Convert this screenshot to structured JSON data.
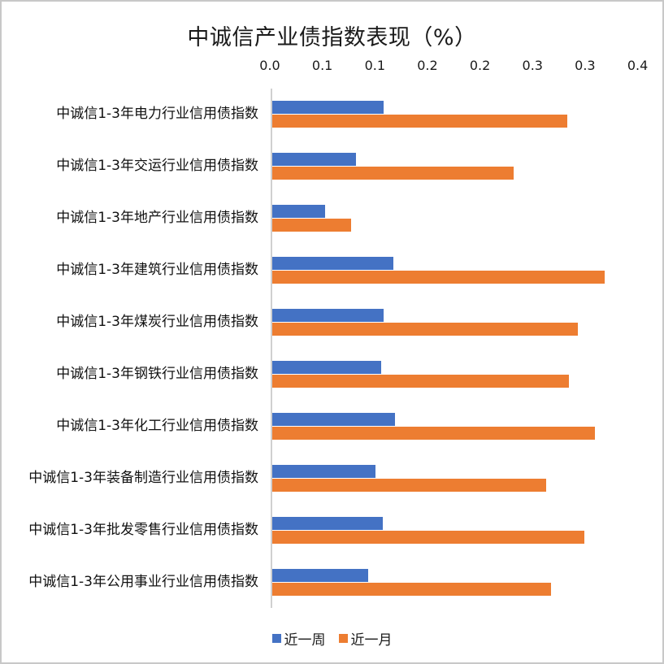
{
  "chart_data": {
    "type": "bar",
    "orientation": "horizontal",
    "title": "中诚信产业债指数表现（%）",
    "xlabel": "",
    "ylabel": "",
    "x_axis_position": "top",
    "xlim": [
      0,
      0.35
    ],
    "x_tick_labels": [
      "0.0",
      "0.1",
      "0.1",
      "0.2",
      "0.2",
      "0.3",
      "0.3",
      "0.4"
    ],
    "x_tick_values": [
      0.0,
      0.05,
      0.1,
      0.15,
      0.2,
      0.25,
      0.3,
      0.35
    ],
    "grid": false,
    "legend_position": "bottom",
    "categories": [
      "中诚信1-3年电力行业信用债指数",
      "中诚信1-3年交运行业信用债指数",
      "中诚信1-3年地产行业信用债指数",
      "中诚信1-3年建筑行业信用债指数",
      "中诚信1-3年煤炭行业信用债指数",
      "中诚信1-3年钢铁行业信用债指数",
      "中诚信1-3年化工行业信用债指数",
      "中诚信1-3年装备制造行业信用债指数",
      "中诚信1-3年批发零售行业信用债指数",
      "中诚信1-3年公用事业行业信用债指数"
    ],
    "series": [
      {
        "name": "近一周",
        "color": "#4472c4",
        "values": [
          0.106,
          0.08,
          0.05,
          0.115,
          0.106,
          0.104,
          0.117,
          0.098,
          0.105,
          0.091
        ]
      },
      {
        "name": "近一月",
        "color": "#ed7d31",
        "values": [
          0.281,
          0.23,
          0.075,
          0.316,
          0.291,
          0.282,
          0.307,
          0.261,
          0.297,
          0.265
        ]
      }
    ]
  }
}
